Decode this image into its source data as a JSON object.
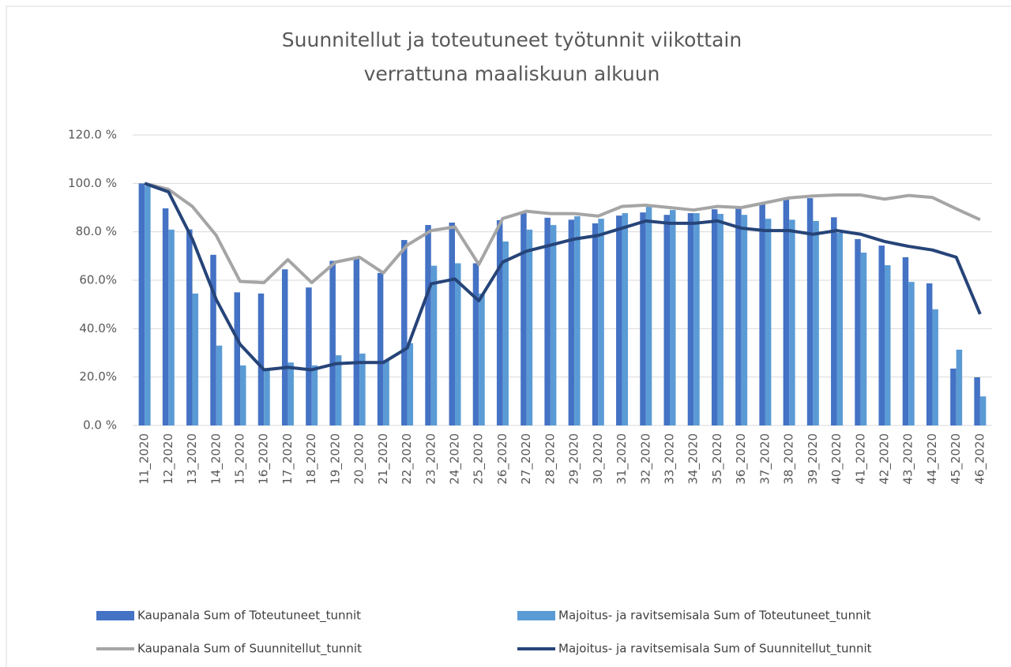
{
  "chart_data": {
    "type": "combo",
    "title": [
      "Suunnitellut ja toteutuneet työtunnit viikottain",
      "verrattuna maaliskuun alkuun"
    ],
    "categories": [
      "11_2020",
      "12_2020",
      "13_2020",
      "14_2020",
      "15_2020",
      "16_2020",
      "17_2020",
      "18_2020",
      "19_2020",
      "20_2020",
      "21_2020",
      "22_2020",
      "23_2020",
      "24_2020",
      "25_2020",
      "26_2020",
      "27_2020",
      "28_2020",
      "29_2020",
      "30_2020",
      "31_2020",
      "32_2020",
      "33_2020",
      "34_2020",
      "35_2020",
      "36_2020",
      "37_2020",
      "38_2020",
      "39_2020",
      "40_2020",
      "41_2020",
      "42_2020",
      "43_2020",
      "44_2020",
      "45_2020",
      "46_2020"
    ],
    "series": [
      {
        "name": "Kaupanala Sum of Toteutuneet_tunnit",
        "type": "bar",
        "color": "#4472c4",
        "values": [
          100,
          89.7,
          81,
          70.5,
          55,
          54.5,
          64.5,
          57,
          68,
          69,
          63,
          76.6,
          82.8,
          83.8,
          67,
          84.8,
          87.7,
          85.8,
          85,
          83.5,
          86.7,
          88,
          87,
          87.7,
          89.3,
          89.7,
          91.3,
          93.6,
          93.9,
          86,
          77,
          74.3,
          69.5,
          58.7,
          23.5,
          19.9
        ]
      },
      {
        "name": "Majoitus- ja ravitsemisala Sum of Toteutuneet_tunnit",
        "type": "bar",
        "color": "#5b9bd5",
        "values": [
          99,
          80.9,
          54.5,
          33,
          24.8,
          23,
          26,
          24.8,
          29,
          29.7,
          27,
          34,
          66,
          67,
          54.5,
          76,
          80.9,
          82.8,
          86.4,
          85.4,
          87.7,
          90.3,
          89,
          87.7,
          87.4,
          87,
          85.4,
          85,
          84.5,
          79.6,
          71.4,
          66.2,
          59.3,
          48,
          31.3,
          12
        ]
      },
      {
        "name": "Kaupanala Sum of Suunnitellut_tunnit",
        "type": "line",
        "color": "#a5a5a5",
        "values": [
          100,
          97.5,
          90.5,
          78.5,
          59.5,
          59,
          68.5,
          59,
          67.5,
          69.5,
          63,
          74.5,
          80.5,
          82,
          66.5,
          85.5,
          88.5,
          87.5,
          87.5,
          86.5,
          90.5,
          91,
          90,
          89,
          90.5,
          90,
          92,
          94,
          94.8,
          95.2,
          95.2,
          93.5,
          95,
          94.2,
          89.5,
          85
        ]
      },
      {
        "name": "Majoitus- ja ravitsemisala Sum of Suunnitellut_tunnit",
        "type": "line",
        "color": "#264478",
        "values": [
          100,
          96.5,
          77,
          52,
          33.5,
          23,
          24,
          23,
          25.5,
          26,
          26,
          32,
          58.5,
          60.5,
          51.5,
          67.5,
          72,
          74.5,
          77,
          78.5,
          81.5,
          84.5,
          83.5,
          83.5,
          84.5,
          81.5,
          80.5,
          80.5,
          79,
          80.5,
          79,
          76,
          74,
          72.5,
          69.5,
          46
        ]
      }
    ],
    "ylim": [
      0,
      120
    ],
    "yticks": [
      {
        "value": 0,
        "label": "0.0 %"
      },
      {
        "value": 20,
        "label": "20.0%"
      },
      {
        "value": 40,
        "label": "40.0%"
      },
      {
        "value": 60,
        "label": "60.0%"
      },
      {
        "value": 80,
        "label": "80.0 %"
      },
      {
        "value": 100,
        "label": "100.0 %"
      },
      {
        "value": 120,
        "label": "120.0 %"
      }
    ],
    "grid": true
  }
}
